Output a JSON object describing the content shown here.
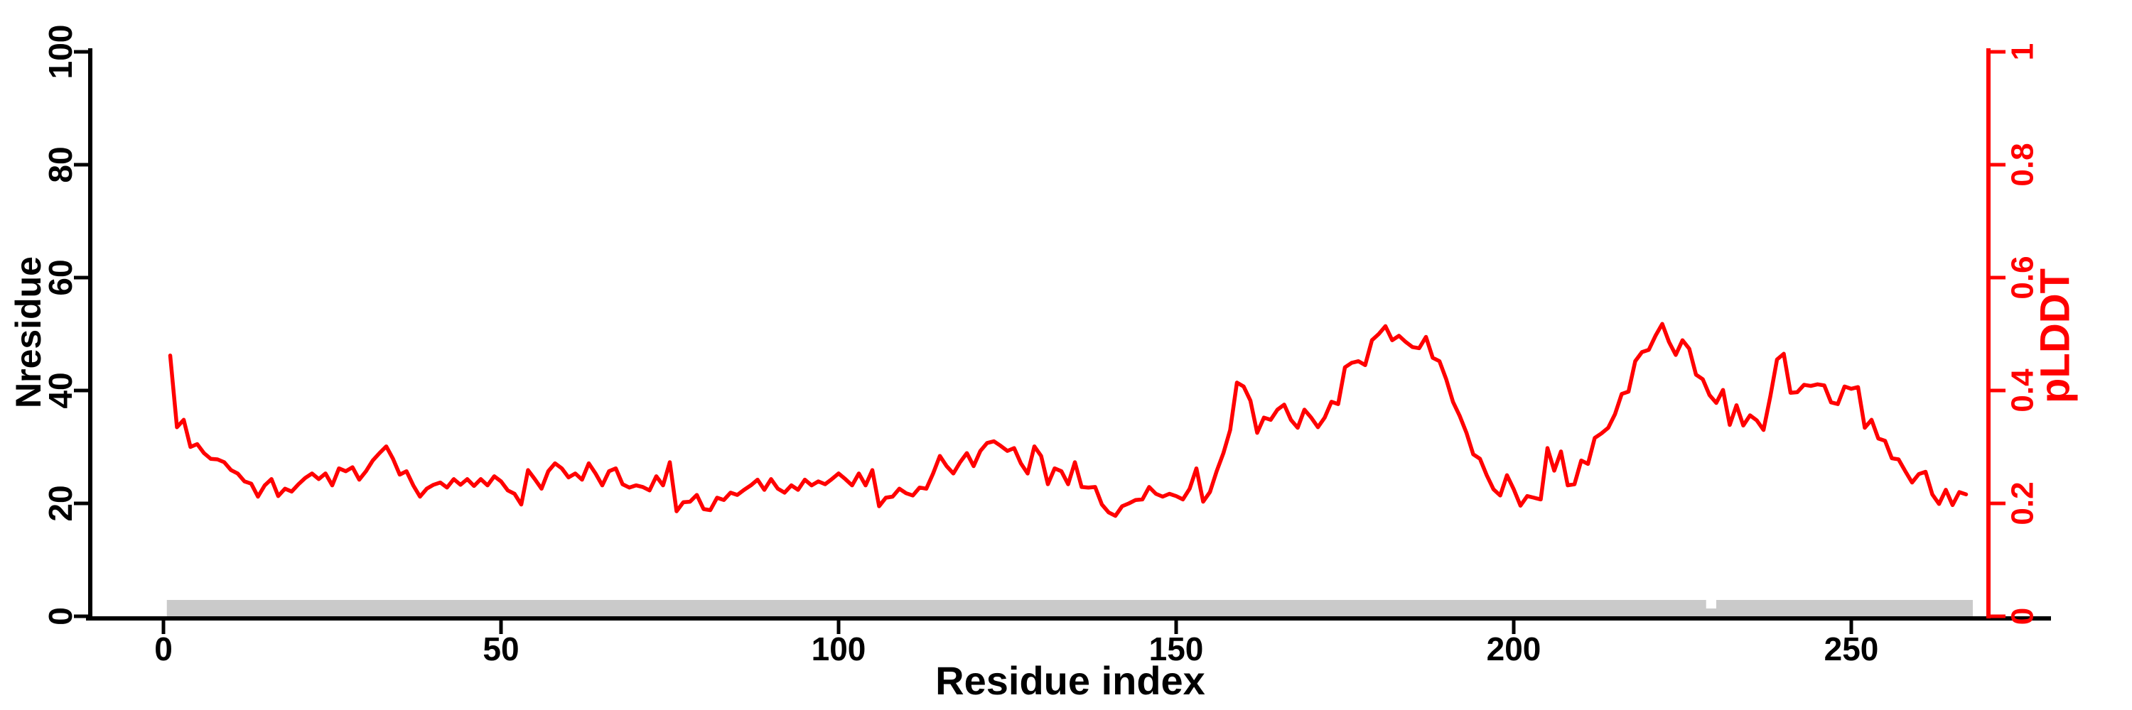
{
  "axes": {
    "left": {
      "label": "Nresidue",
      "ticks": [
        "0",
        "20",
        "40",
        "60",
        "80",
        "100"
      ],
      "tick_values": [
        0,
        20,
        40,
        60,
        80,
        100
      ],
      "range": [
        0,
        100
      ],
      "color": "#000000"
    },
    "bottom": {
      "label": "Residue index",
      "ticks": [
        "0",
        "50",
        "100",
        "150",
        "200",
        "250"
      ],
      "tick_values": [
        0,
        50,
        100,
        150,
        200,
        250
      ],
      "color": "#000000"
    },
    "right": {
      "label": "pLDDT",
      "ticks": [
        "0",
        "0.2",
        "0.4",
        "0.6",
        "0.8",
        "1"
      ],
      "tick_values": [
        0,
        0.2,
        0.4,
        0.6,
        0.8,
        1
      ],
      "range": [
        0,
        1
      ],
      "color": "#ff0000"
    }
  },
  "colors": {
    "line": "#ff0000",
    "axis": "#000000",
    "sequence_bar": "#cacaca",
    "background": "#ffffff"
  },
  "chart_data": {
    "type": "line",
    "title": "",
    "xlabel": "Residue index",
    "ylabel_left": "Nresidue",
    "ylabel_right": "pLDDT",
    "left_ylim": [
      0,
      100
    ],
    "right_ylim": [
      0,
      1
    ],
    "xlim": [
      -11,
      282
    ],
    "grid": false,
    "legend_position": "none",
    "series": [
      {
        "name": "pLDDT",
        "axis": "right",
        "color": "#ff0000",
        "x_start": 1,
        "x_step": 1,
        "values": [
          0.462,
          0.335,
          0.348,
          0.3,
          0.305,
          0.289,
          0.279,
          0.278,
          0.273,
          0.259,
          0.253,
          0.239,
          0.235,
          0.212,
          0.232,
          0.243,
          0.213,
          0.226,
          0.221,
          0.234,
          0.245,
          0.253,
          0.243,
          0.253,
          0.232,
          0.262,
          0.257,
          0.264,
          0.242,
          0.257,
          0.276,
          0.289,
          0.301,
          0.279,
          0.251,
          0.257,
          0.232,
          0.212,
          0.226,
          0.233,
          0.237,
          0.228,
          0.243,
          0.233,
          0.243,
          0.231,
          0.243,
          0.232,
          0.248,
          0.239,
          0.223,
          0.217,
          0.198,
          0.259,
          0.243,
          0.226,
          0.257,
          0.271,
          0.262,
          0.246,
          0.253,
          0.242,
          0.271,
          0.253,
          0.232,
          0.257,
          0.262,
          0.234,
          0.228,
          0.232,
          0.229,
          0.223,
          0.248,
          0.232,
          0.273,
          0.186,
          0.202,
          0.203,
          0.215,
          0.19,
          0.188,
          0.21,
          0.206,
          0.219,
          0.215,
          0.224,
          0.232,
          0.242,
          0.224,
          0.243,
          0.226,
          0.219,
          0.232,
          0.224,
          0.242,
          0.232,
          0.239,
          0.234,
          0.243,
          0.253,
          0.243,
          0.232,
          0.253,
          0.232,
          0.259,
          0.195,
          0.21,
          0.212,
          0.226,
          0.218,
          0.214,
          0.228,
          0.226,
          0.253,
          0.284,
          0.266,
          0.253,
          0.273,
          0.289,
          0.266,
          0.293,
          0.307,
          0.31,
          0.302,
          0.293,
          0.298,
          0.271,
          0.253,
          0.301,
          0.284,
          0.234,
          0.262,
          0.257,
          0.234,
          0.273,
          0.229,
          0.228,
          0.229,
          0.198,
          0.184,
          0.178,
          0.195,
          0.2,
          0.206,
          0.207,
          0.229,
          0.217,
          0.212,
          0.217,
          0.213,
          0.207,
          0.226,
          0.262,
          0.203,
          0.22,
          0.257,
          0.289,
          0.33,
          0.414,
          0.407,
          0.382,
          0.325,
          0.352,
          0.348,
          0.366,
          0.375,
          0.348,
          0.334,
          0.366,
          0.352,
          0.335,
          0.352,
          0.38,
          0.376,
          0.441,
          0.449,
          0.452,
          0.445,
          0.489,
          0.5,
          0.514,
          0.489,
          0.497,
          0.486,
          0.477,
          0.475,
          0.495,
          0.458,
          0.452,
          0.42,
          0.38,
          0.355,
          0.325,
          0.287,
          0.279,
          0.25,
          0.225,
          0.214,
          0.25,
          0.225,
          0.196,
          0.213,
          0.21,
          0.207,
          0.298,
          0.258,
          0.292,
          0.232,
          0.234,
          0.276,
          0.27,
          0.316,
          0.324,
          0.334,
          0.358,
          0.394,
          0.398,
          0.452,
          0.468,
          0.472,
          0.497,
          0.518,
          0.486,
          0.463,
          0.489,
          0.474,
          0.428,
          0.42,
          0.392,
          0.378,
          0.401,
          0.339,
          0.374,
          0.338,
          0.356,
          0.347,
          0.33,
          0.389,
          0.455,
          0.465,
          0.396,
          0.397,
          0.41,
          0.408,
          0.411,
          0.409,
          0.379,
          0.376,
          0.407,
          0.403,
          0.406,
          0.334,
          0.348,
          0.315,
          0.311,
          0.28,
          0.278,
          0.257,
          0.237,
          0.252,
          0.256,
          0.216,
          0.199,
          0.224,
          0.197,
          0.22,
          0.216
        ]
      }
    ],
    "annotations": {
      "sequence_bar": {
        "description": "gray bar along baseline marking modeled residue range",
        "x_start": 0.5,
        "x_end": 268,
        "gap_x_start": 228.5,
        "gap_x_end": 230,
        "color": "#cacaca"
      }
    }
  }
}
